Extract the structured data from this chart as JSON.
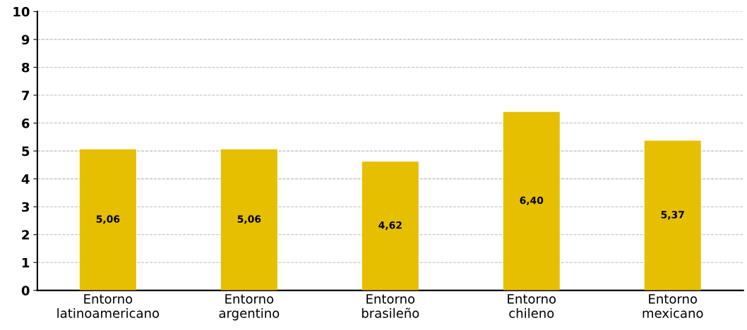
{
  "chart_data": {
    "type": "bar",
    "categories": [
      "Entorno\nlatinoamericano",
      "Entorno\nargentino",
      "Entorno\nbrasileño",
      "Entorno\nchileno",
      "Entorno\nmexicano"
    ],
    "values": [
      5.06,
      5.06,
      4.62,
      6.4,
      5.37
    ],
    "value_labels": [
      "5,06",
      "5,06",
      "4,62",
      "6,40",
      "5,37"
    ],
    "color": "#e6bf00",
    "ylim": [
      0,
      10
    ],
    "yticks": [
      0,
      1,
      2,
      3,
      4,
      5,
      6,
      7,
      8,
      9,
      10
    ],
    "grid": "y"
  }
}
